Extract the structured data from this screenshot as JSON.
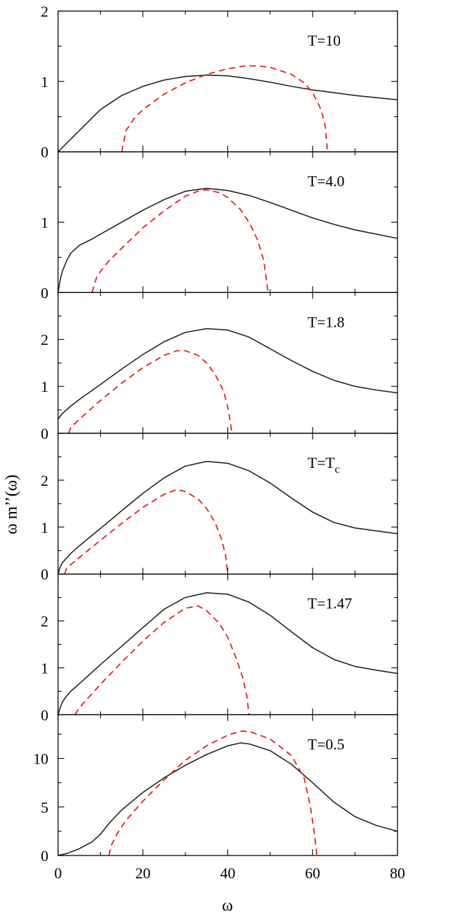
{
  "figure": {
    "ylabel": "ω m’’(ω)",
    "xlabel": "ω",
    "xlim": [
      0,
      80
    ],
    "xticks": [
      0,
      20,
      40,
      60,
      80
    ],
    "colors": {
      "solid": "#222222",
      "dashed": "#e0201e",
      "axes": "#000000"
    }
  },
  "chart_data": [
    {
      "type": "line",
      "annotation": "T=10",
      "ylim": [
        0,
        2
      ],
      "yticks": [
        0,
        1,
        2
      ],
      "series": [
        {
          "style": "solid",
          "x": [
            0,
            2,
            5,
            10,
            15,
            20,
            25,
            30,
            35,
            40,
            45,
            50,
            55,
            60,
            65,
            70,
            75,
            80
          ],
          "y": [
            0,
            0.12,
            0.3,
            0.6,
            0.8,
            0.93,
            1.02,
            1.07,
            1.09,
            1.08,
            1.04,
            0.99,
            0.93,
            0.88,
            0.84,
            0.8,
            0.77,
            0.74
          ]
        },
        {
          "style": "dashed",
          "x": [
            15,
            16,
            18,
            20,
            25,
            30,
            35,
            40,
            44,
            47,
            50,
            55,
            58,
            60,
            62,
            63,
            63.5
          ],
          "y": [
            0,
            0.3,
            0.48,
            0.6,
            0.82,
            0.98,
            1.1,
            1.18,
            1.22,
            1.22,
            1.2,
            1.1,
            0.98,
            0.84,
            0.6,
            0.35,
            0
          ]
        }
      ]
    },
    {
      "type": "line",
      "annotation": "T=4.0",
      "ylim": [
        0,
        2
      ],
      "yticks": [
        0,
        1
      ],
      "series": [
        {
          "style": "solid",
          "x": [
            0,
            0.5,
            1,
            2,
            3,
            5,
            8,
            10,
            15,
            20,
            25,
            30,
            35,
            40,
            45,
            50,
            55,
            60,
            65,
            70,
            75,
            80
          ],
          "y": [
            0,
            0.18,
            0.3,
            0.45,
            0.56,
            0.67,
            0.76,
            0.83,
            1.0,
            1.17,
            1.32,
            1.44,
            1.48,
            1.45,
            1.38,
            1.28,
            1.17,
            1.06,
            0.97,
            0.89,
            0.83,
            0.77
          ]
        },
        {
          "style": "dashed",
          "x": [
            8,
            9,
            10,
            12,
            15,
            20,
            25,
            30,
            33,
            35,
            38,
            40,
            43,
            45,
            47,
            48.5,
            49.5
          ],
          "y": [
            0,
            0.2,
            0.3,
            0.45,
            0.63,
            0.92,
            1.16,
            1.37,
            1.44,
            1.46,
            1.42,
            1.35,
            1.18,
            1.0,
            0.75,
            0.45,
            0
          ]
        }
      ]
    },
    {
      "type": "line",
      "annotation": "T=1.8",
      "ylim": [
        0,
        3
      ],
      "yticks": [
        0,
        1,
        2
      ],
      "series": [
        {
          "style": "solid",
          "x": [
            0,
            1,
            3,
            5,
            10,
            15,
            20,
            25,
            30,
            35,
            40,
            45,
            50,
            55,
            60,
            65,
            70,
            75,
            80
          ],
          "y": [
            0.3,
            0.42,
            0.58,
            0.72,
            1.04,
            1.37,
            1.68,
            1.95,
            2.15,
            2.23,
            2.2,
            2.05,
            1.8,
            1.55,
            1.32,
            1.13,
            1.0,
            0.92,
            0.86
          ]
        },
        {
          "style": "dashed",
          "x": [
            2.5,
            3,
            5,
            10,
            15,
            20,
            25,
            28,
            30,
            33,
            35,
            37,
            39,
            40,
            40.5,
            41
          ],
          "y": [
            0,
            0.12,
            0.3,
            0.7,
            1.07,
            1.4,
            1.66,
            1.76,
            1.76,
            1.66,
            1.5,
            1.26,
            0.9,
            0.55,
            0.3,
            0
          ]
        }
      ]
    },
    {
      "type": "line",
      "annotation": "T=Tc",
      "ylim": [
        0,
        3
      ],
      "yticks": [
        0,
        1,
        2
      ],
      "series": [
        {
          "style": "solid",
          "x": [
            0,
            0.5,
            1,
            2,
            3,
            5,
            10,
            15,
            20,
            25,
            30,
            35,
            40,
            45,
            50,
            55,
            60,
            65,
            70,
            75,
            80
          ],
          "y": [
            0,
            0.15,
            0.24,
            0.34,
            0.44,
            0.6,
            0.97,
            1.35,
            1.72,
            2.05,
            2.3,
            2.4,
            2.36,
            2.2,
            1.94,
            1.62,
            1.32,
            1.1,
            0.98,
            0.92,
            0.86
          ]
        },
        {
          "style": "dashed",
          "x": [
            1.5,
            2,
            3,
            5,
            10,
            15,
            20,
            25,
            28,
            30,
            33,
            35,
            37,
            38.5,
            39.5,
            40
          ],
          "y": [
            0,
            0.12,
            0.2,
            0.35,
            0.72,
            1.08,
            1.42,
            1.7,
            1.8,
            1.76,
            1.6,
            1.4,
            1.1,
            0.75,
            0.4,
            0
          ]
        }
      ]
    },
    {
      "type": "line",
      "annotation": "T=1.47",
      "ylim": [
        0,
        3
      ],
      "yticks": [
        0,
        1,
        2
      ],
      "series": [
        {
          "style": "solid",
          "x": [
            0,
            0.5,
            1,
            2,
            3,
            5,
            10,
            15,
            20,
            25,
            30,
            35,
            40,
            45,
            50,
            55,
            60,
            65,
            70,
            75,
            80
          ],
          "y": [
            0,
            0.15,
            0.27,
            0.4,
            0.5,
            0.66,
            1.07,
            1.46,
            1.86,
            2.25,
            2.5,
            2.6,
            2.57,
            2.4,
            2.12,
            1.77,
            1.43,
            1.18,
            1.03,
            0.95,
            0.88
          ]
        },
        {
          "style": "dashed",
          "x": [
            4,
            5,
            7,
            10,
            15,
            20,
            25,
            30,
            33,
            35,
            38,
            40,
            42,
            43.5,
            44.5,
            45
          ],
          "y": [
            0,
            0.15,
            0.35,
            0.65,
            1.12,
            1.57,
            1.97,
            2.27,
            2.32,
            2.22,
            1.95,
            1.65,
            1.2,
            0.8,
            0.4,
            0
          ]
        }
      ]
    },
    {
      "type": "line",
      "annotation": "T=0.5",
      "ylim": [
        0,
        14.5
      ],
      "yticks": [
        0,
        5,
        10
      ],
      "series": [
        {
          "style": "solid",
          "x": [
            0,
            2,
            5,
            8,
            10,
            12,
            15,
            20,
            25,
            30,
            35,
            40,
            43,
            45,
            50,
            55,
            60,
            65,
            70,
            75,
            80
          ],
          "y": [
            0,
            0.2,
            0.7,
            1.4,
            2.2,
            3.3,
            4.7,
            6.5,
            8.0,
            9.3,
            10.4,
            11.3,
            11.6,
            11.5,
            10.8,
            9.4,
            7.5,
            5.5,
            4.0,
            3.1,
            2.5
          ]
        },
        {
          "style": "dashed",
          "x": [
            12,
            12.5,
            14,
            16,
            20,
            25,
            30,
            35,
            40,
            43,
            45,
            50,
            55,
            58,
            59.5,
            60.5,
            61
          ],
          "y": [
            0,
            1.0,
            2.3,
            3.6,
            5.6,
            7.8,
            9.8,
            11.3,
            12.4,
            12.8,
            12.8,
            12.0,
            10.3,
            8.0,
            5.0,
            2.0,
            0
          ]
        }
      ]
    }
  ]
}
